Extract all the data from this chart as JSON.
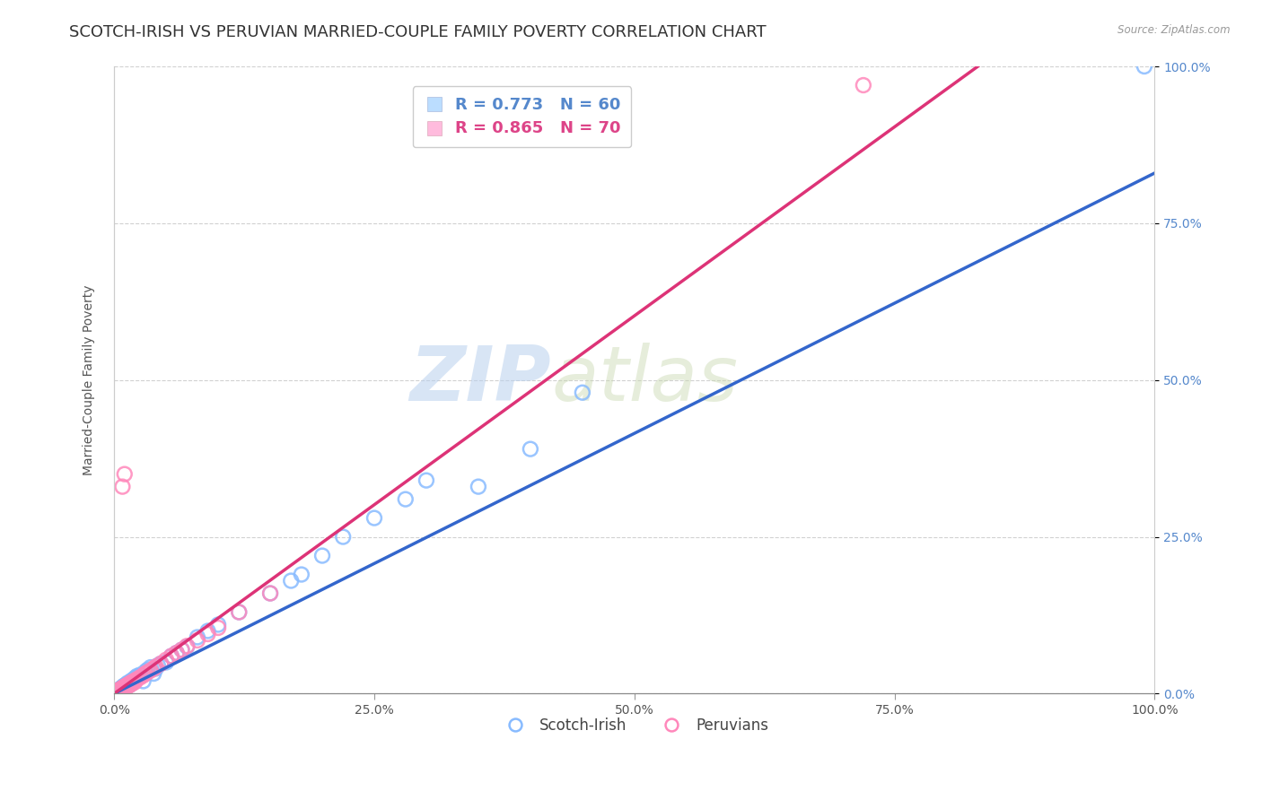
{
  "title": "SCOTCH-IRISH VS PERUVIAN MARRIED-COUPLE FAMILY POVERTY CORRELATION CHART",
  "source": "Source: ZipAtlas.com",
  "ylabel": "Married-Couple Family Poverty",
  "watermark_zip": "ZIP",
  "watermark_atlas": "atlas",
  "xlim": [
    0,
    1.0
  ],
  "ylim": [
    0,
    1.0
  ],
  "x_ticks": [
    0.0,
    0.25,
    0.5,
    0.75,
    1.0
  ],
  "x_tick_labels": [
    "0.0%",
    "25.0%",
    "50.0%",
    "75.0%",
    "100.0%"
  ],
  "y_tick_labels_right": [
    "0.0%",
    "25.0%",
    "50.0%",
    "75.0%",
    "100.0%"
  ],
  "scotch_irish_color": "#88bbff",
  "peruvian_color": "#ff88bb",
  "scotch_irish_line_color": "#3366cc",
  "peruvian_line_color": "#dd3377",
  "scotch_irish_line": {
    "x0": 0.0,
    "y0": 0.0,
    "x1": 1.0,
    "y1": 0.83
  },
  "peruvian_line": {
    "x0": 0.0,
    "y0": 0.0,
    "x1": 0.83,
    "y1": 1.0
  },
  "scotch_irish_points": [
    [
      0.001,
      0.001
    ],
    [
      0.001,
      0.002
    ],
    [
      0.002,
      0.002
    ],
    [
      0.002,
      0.003
    ],
    [
      0.002,
      0.001
    ],
    [
      0.003,
      0.003
    ],
    [
      0.003,
      0.002
    ],
    [
      0.003,
      0.004
    ],
    [
      0.004,
      0.003
    ],
    [
      0.004,
      0.005
    ],
    [
      0.005,
      0.004
    ],
    [
      0.005,
      0.006
    ],
    [
      0.006,
      0.005
    ],
    [
      0.006,
      0.008
    ],
    [
      0.007,
      0.006
    ],
    [
      0.007,
      0.009
    ],
    [
      0.008,
      0.007
    ],
    [
      0.008,
      0.01
    ],
    [
      0.009,
      0.008
    ],
    [
      0.009,
      0.012
    ],
    [
      0.01,
      0.009
    ],
    [
      0.01,
      0.013
    ],
    [
      0.012,
      0.011
    ],
    [
      0.012,
      0.015
    ],
    [
      0.013,
      0.017
    ],
    [
      0.015,
      0.014
    ],
    [
      0.016,
      0.02
    ],
    [
      0.018,
      0.022
    ],
    [
      0.02,
      0.025
    ],
    [
      0.022,
      0.028
    ],
    [
      0.025,
      0.03
    ],
    [
      0.028,
      0.02
    ],
    [
      0.03,
      0.035
    ],
    [
      0.032,
      0.038
    ],
    [
      0.035,
      0.042
    ],
    [
      0.038,
      0.032
    ],
    [
      0.04,
      0.04
    ],
    [
      0.042,
      0.045
    ],
    [
      0.045,
      0.048
    ],
    [
      0.05,
      0.05
    ],
    [
      0.055,
      0.06
    ],
    [
      0.06,
      0.065
    ],
    [
      0.065,
      0.07
    ],
    [
      0.07,
      0.075
    ],
    [
      0.08,
      0.09
    ],
    [
      0.09,
      0.1
    ],
    [
      0.1,
      0.11
    ],
    [
      0.12,
      0.13
    ],
    [
      0.15,
      0.16
    ],
    [
      0.17,
      0.18
    ],
    [
      0.18,
      0.19
    ],
    [
      0.2,
      0.22
    ],
    [
      0.22,
      0.25
    ],
    [
      0.25,
      0.28
    ],
    [
      0.28,
      0.31
    ],
    [
      0.3,
      0.34
    ],
    [
      0.35,
      0.33
    ],
    [
      0.4,
      0.39
    ],
    [
      0.45,
      0.48
    ],
    [
      0.99,
      1.0
    ]
  ],
  "peruvian_points": [
    [
      0.001,
      0.001
    ],
    [
      0.001,
      0.002
    ],
    [
      0.002,
      0.001
    ],
    [
      0.002,
      0.003
    ],
    [
      0.002,
      0.002
    ],
    [
      0.003,
      0.002
    ],
    [
      0.003,
      0.003
    ],
    [
      0.003,
      0.004
    ],
    [
      0.004,
      0.003
    ],
    [
      0.004,
      0.005
    ],
    [
      0.004,
      0.004
    ],
    [
      0.005,
      0.004
    ],
    [
      0.005,
      0.006
    ],
    [
      0.005,
      0.005
    ],
    [
      0.006,
      0.005
    ],
    [
      0.006,
      0.007
    ],
    [
      0.006,
      0.006
    ],
    [
      0.007,
      0.006
    ],
    [
      0.007,
      0.008
    ],
    [
      0.007,
      0.007
    ],
    [
      0.008,
      0.007
    ],
    [
      0.008,
      0.009
    ],
    [
      0.008,
      0.008
    ],
    [
      0.009,
      0.008
    ],
    [
      0.009,
      0.01
    ],
    [
      0.009,
      0.009
    ],
    [
      0.01,
      0.009
    ],
    [
      0.01,
      0.011
    ],
    [
      0.01,
      0.01
    ],
    [
      0.011,
      0.01
    ],
    [
      0.011,
      0.012
    ],
    [
      0.012,
      0.011
    ],
    [
      0.012,
      0.013
    ],
    [
      0.013,
      0.012
    ],
    [
      0.013,
      0.014
    ],
    [
      0.014,
      0.013
    ],
    [
      0.014,
      0.015
    ],
    [
      0.015,
      0.014
    ],
    [
      0.015,
      0.016
    ],
    [
      0.016,
      0.015
    ],
    [
      0.016,
      0.017
    ],
    [
      0.017,
      0.016
    ],
    [
      0.017,
      0.018
    ],
    [
      0.018,
      0.017
    ],
    [
      0.018,
      0.019
    ],
    [
      0.019,
      0.018
    ],
    [
      0.02,
      0.019
    ],
    [
      0.02,
      0.021
    ],
    [
      0.022,
      0.023
    ],
    [
      0.025,
      0.026
    ],
    [
      0.028,
      0.029
    ],
    [
      0.03,
      0.032
    ],
    [
      0.032,
      0.034
    ],
    [
      0.035,
      0.037
    ],
    [
      0.038,
      0.04
    ],
    [
      0.04,
      0.043
    ],
    [
      0.045,
      0.048
    ],
    [
      0.05,
      0.054
    ],
    [
      0.055,
      0.06
    ],
    [
      0.06,
      0.065
    ],
    [
      0.065,
      0.07
    ],
    [
      0.07,
      0.076
    ],
    [
      0.008,
      0.33
    ],
    [
      0.01,
      0.35
    ],
    [
      0.08,
      0.085
    ],
    [
      0.09,
      0.095
    ],
    [
      0.1,
      0.105
    ],
    [
      0.12,
      0.13
    ],
    [
      0.15,
      0.16
    ],
    [
      0.72,
      0.97
    ]
  ],
  "background_color": "#ffffff",
  "grid_color": "#cccccc",
  "title_fontsize": 13,
  "axis_label_fontsize": 10,
  "tick_fontsize": 10,
  "legend_fontsize": 12
}
